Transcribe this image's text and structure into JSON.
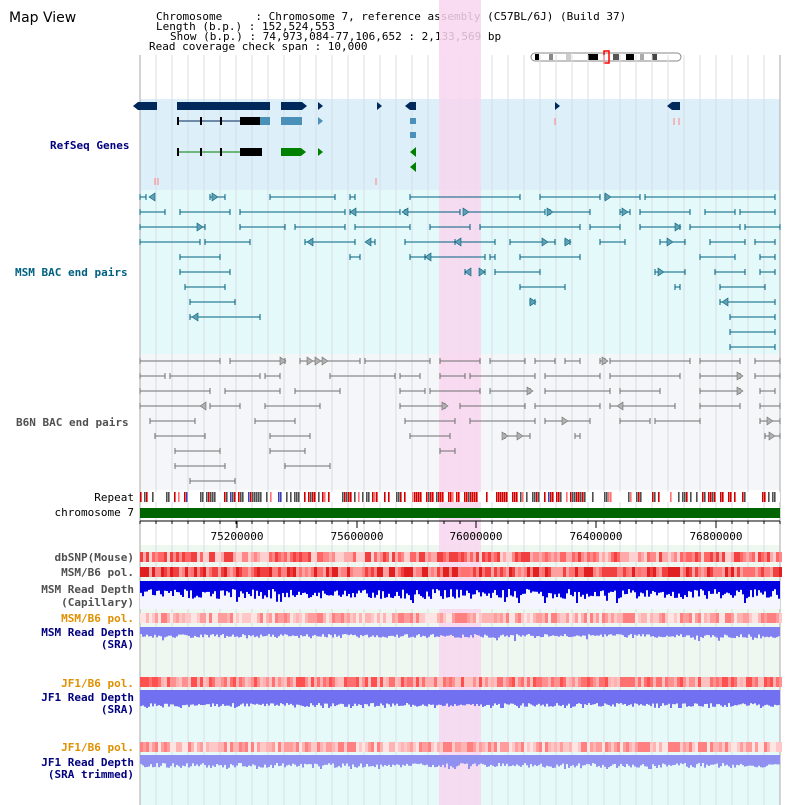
{
  "view_title": "Map View",
  "info": {
    "chromosome_key": "Chromosome     :",
    "chromosome_value": "Chromosome 7, reference assembly (C57BL/6J) (Build 37)",
    "length_key": "Length (b.p.) :",
    "length_value": "152,524,553",
    "show_key": "Show (b.p.) :",
    "show_value": "74,973,084-77,106,652 : 2,133,569 bp",
    "read_coverage": "Read coverage check span : 10,000"
  },
  "tracks": {
    "refseq": "RefSeq Genes",
    "msm_bac": "MSM BAC end pairs",
    "b6n_bac": "B6N BAC end pairs",
    "repeat": "Repeat",
    "chromosome": "chromosome 7",
    "dbsnp": "dbSNP(Mouse)",
    "msm_b6_pol_1": "MSM/B6 pol.",
    "msm_rd_cap_1": "MSM Read Depth",
    "msm_rd_cap_2": "(Capillary)",
    "msm_b6_pol_2": "MSM/B6 pol.",
    "msm_rd_sra_1": "MSM Read Depth",
    "msm_rd_sra_2": "(SRA)",
    "jf1_b6_pol_1": "JF1/B6 pol.",
    "jf1_rd_sra_1": "JF1 Read Depth",
    "jf1_rd_sra_2": "(SRA)",
    "jf1_b6_pol_2": "JF1/B6 pol.",
    "jf1_rd_trim_1": "JF1 Read Depth",
    "jf1_rd_trim_2": "(SRA trimmed)"
  },
  "ruler": {
    "ticks": [
      "75200000",
      "75600000",
      "76000000",
      "76400000",
      "76800000"
    ]
  },
  "colors": {
    "refseq_bg": "#ddf0fa",
    "msm_bg": "#e4fafa",
    "b6n_bg": "#f4f6f8",
    "lower_bg": "#eef8f0",
    "highlight": "#f8d6ef",
    "gene_navy": "#00285a",
    "gene_green": "#008000",
    "msm_teal": "#006080",
    "chrom_green": "#006400",
    "depth_blue": "#0000e0"
  }
}
